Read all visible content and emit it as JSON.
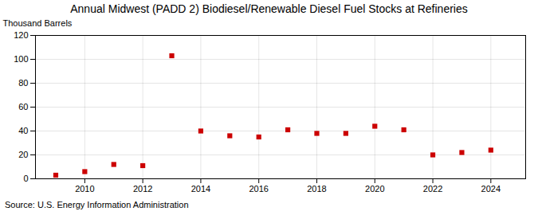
{
  "chart_data": {
    "type": "scatter",
    "title": "Annual Midwest (PADD 2) Biodiesel/Renewable Diesel Fuel Stocks at Refineries",
    "ylabel": "Thousand Barrels",
    "source": "Source: U.S. Energy Information Administration",
    "x": [
      2009,
      2010,
      2011,
      2012,
      2013,
      2014,
      2015,
      2016,
      2017,
      2018,
      2019,
      2020,
      2021,
      2022,
      2023,
      2024
    ],
    "values": [
      3,
      6,
      12,
      11,
      103,
      40,
      36,
      35,
      41,
      38,
      38,
      44,
      41,
      20,
      22,
      24
    ],
    "color": "#cc0000",
    "marker": "square",
    "xlim": [
      2008.3,
      2025.2
    ],
    "xticks": [
      2010,
      2012,
      2014,
      2016,
      2018,
      2020,
      2022,
      2024
    ],
    "ylim": [
      0,
      120
    ],
    "yticks": [
      0,
      20,
      40,
      60,
      80,
      100,
      120
    ],
    "grid": true
  }
}
